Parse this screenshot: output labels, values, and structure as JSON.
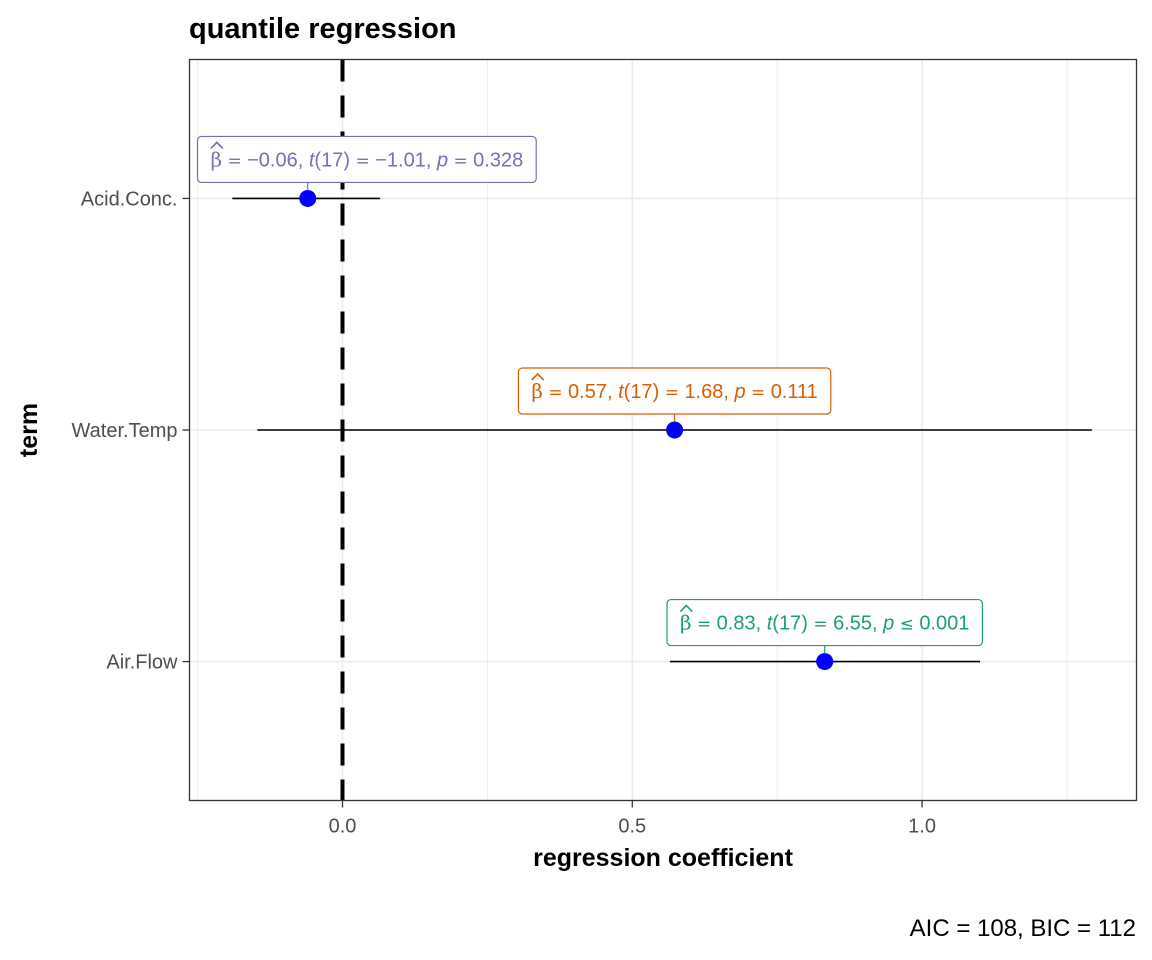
{
  "chart_data": {
    "type": "scatter",
    "title": "quantile regression",
    "xlabel": "regression coefficient",
    "ylabel": "term",
    "caption": "AIC = 108, BIC = 112",
    "xlim": [
      -0.264,
      1.37
    ],
    "x_ticks": [
      0.0,
      0.5,
      1.0
    ],
    "x_tick_labels": [
      "0.0",
      "0.5",
      "1.0"
    ],
    "grid": true,
    "reference_line": 0,
    "point_color": "#0000ff",
    "terms": [
      {
        "term": "Acid.Conc.",
        "estimate": -0.06,
        "conf_low": -0.19,
        "conf_high": 0.065,
        "color": "#7570b3",
        "label": {
          "beta": "β",
          "estimate": "−0.06",
          "df": "17",
          "t": "−1.01",
          "p_op": "=",
          "p": "0.328"
        }
      },
      {
        "term": "Water.Temp",
        "estimate": 0.573,
        "conf_low": -0.147,
        "conf_high": 1.293,
        "color": "#d95f02",
        "label": {
          "beta": "β",
          "estimate": "0.57",
          "df": "17",
          "t": "1.68",
          "p_op": "=",
          "p": "0.111"
        }
      },
      {
        "term": "Air.Flow",
        "estimate": 0.832,
        "conf_low": 0.565,
        "conf_high": 1.1,
        "color": "#1b9e77",
        "label": {
          "beta": "β",
          "estimate": "0.83",
          "df": "17",
          "t": "6.55",
          "p_op": "≤",
          "p": "0.001"
        }
      }
    ]
  }
}
